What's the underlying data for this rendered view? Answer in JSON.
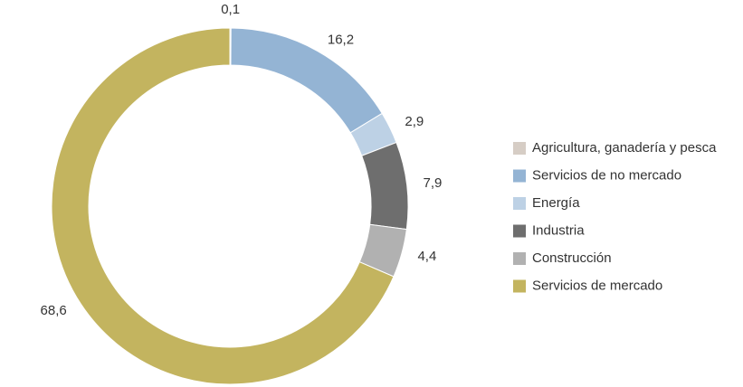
{
  "chart_data": {
    "type": "donut",
    "categories": [
      "Agricultura, ganadería y pesca",
      "Servicios de no mercado",
      "Energía",
      "Industria",
      "Construcción",
      "Servicios de mercado"
    ],
    "values": [
      0.1,
      16.2,
      2.9,
      7.9,
      4.4,
      68.6
    ],
    "value_labels": [
      "0,1",
      "16,2",
      "2,9",
      "7,9",
      "4,4",
      "68,6"
    ],
    "colors": [
      "#d6cdc5",
      "#94b4d4",
      "#bdd1e5",
      "#6e6e6e",
      "#b1b1b1",
      "#c3b45f"
    ],
    "legend": "right"
  }
}
